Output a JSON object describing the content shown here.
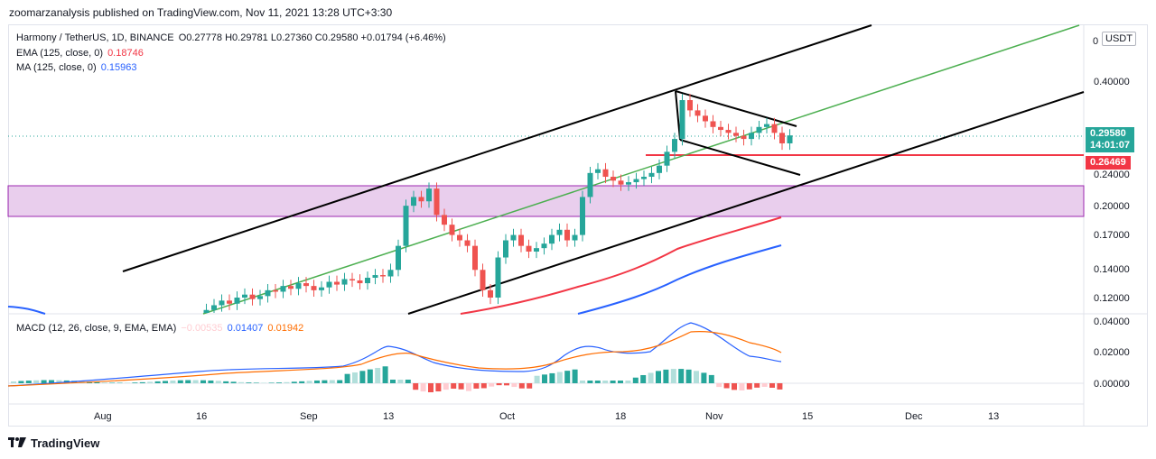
{
  "header": {
    "published": "zoomarzanalysis published on TradingView.com, Nov 11, 2021 13:28 UTC+3:30"
  },
  "legend": {
    "symbol": "Harmony / TetherUS, 1D, BINANCE",
    "ohlc": "O0.27778  H0.29781  L0.27360  C0.29580  +0.01794 (+6.46%)",
    "ema_label": "EMA (125, close, 0)",
    "ema_value": "0.18746",
    "ma_label": "MA (125, close, 0)",
    "ma_value": "0.15963",
    "macd_label": "MACD (12, 26, close, 9, EMA, EMA)",
    "macd_hist": "−0.00535",
    "macd_line": "0.01407",
    "macd_signal": "0.01942"
  },
  "currency_button": "USDT",
  "price_axis": {
    "ticks": [
      "0.40000",
      "0.24000",
      "0.20000",
      "0.17000",
      "0.14000",
      "0.12000"
    ],
    "current_price": "0.29580",
    "countdown": "14:01:07",
    "level_price": "0.26469",
    "top_label": "0"
  },
  "macd_axis": {
    "ticks": [
      "0.04000",
      "0.02000",
      "0.00000"
    ]
  },
  "time_axis": {
    "ticks": [
      "Aug",
      "16",
      "Sep",
      "13",
      "Oct",
      "18",
      "Nov",
      "15",
      "Dec",
      "13"
    ]
  },
  "footer": {
    "brand": "TradingView"
  },
  "colors": {
    "bull": "#26a69a",
    "bear": "#ef5350",
    "ema": "#f23645",
    "ma": "#2962ff",
    "channel": "#000000",
    "midline": "#4caf50",
    "zone": "#e1bee7",
    "macd": "#2962ff",
    "signal": "#ff6d00",
    "level": "#f23645"
  },
  "chart_data": {
    "type": "candlestick",
    "symbol": "Harmony / TetherUS",
    "interval": "1D",
    "exchange": "BINANCE",
    "y_scale": "log",
    "last_candle": {
      "open": 0.27778,
      "high": 0.29781,
      "low": 0.2736,
      "close": 0.2958,
      "change": 0.01794,
      "change_pct": 6.46
    },
    "indicators": {
      "EMA_125": 0.18746,
      "MA_125": 0.15963,
      "MACD": {
        "histogram": -0.00535,
        "macd": 0.01407,
        "signal": 0.01942
      }
    },
    "horizontal_level": 0.26469,
    "support_zone": [
      0.19,
      0.225
    ],
    "candles_close_approx": [
      0.11,
      0.112,
      0.115,
      0.118,
      0.116,
      0.12,
      0.122,
      0.119,
      0.121,
      0.125,
      0.124,
      0.128,
      0.126,
      0.13,
      0.128,
      0.125,
      0.127,
      0.131,
      0.129,
      0.133,
      0.132,
      0.13,
      0.134,
      0.136,
      0.135,
      0.14,
      0.16,
      0.2,
      0.21,
      0.205,
      0.22,
      0.19,
      0.18,
      0.17,
      0.165,
      0.16,
      0.14,
      0.125,
      0.12,
      0.15,
      0.165,
      0.17,
      0.16,
      0.155,
      0.158,
      0.162,
      0.17,
      0.175,
      0.165,
      0.17,
      0.21,
      0.24,
      0.245,
      0.235,
      0.23,
      0.225,
      0.228,
      0.232,
      0.235,
      0.24,
      0.25,
      0.27,
      0.29,
      0.36,
      0.34,
      0.33,
      0.32,
      0.31,
      0.305,
      0.3,
      0.295,
      0.29,
      0.3,
      0.31,
      0.315,
      0.3,
      0.283,
      0.2958
    ]
  }
}
